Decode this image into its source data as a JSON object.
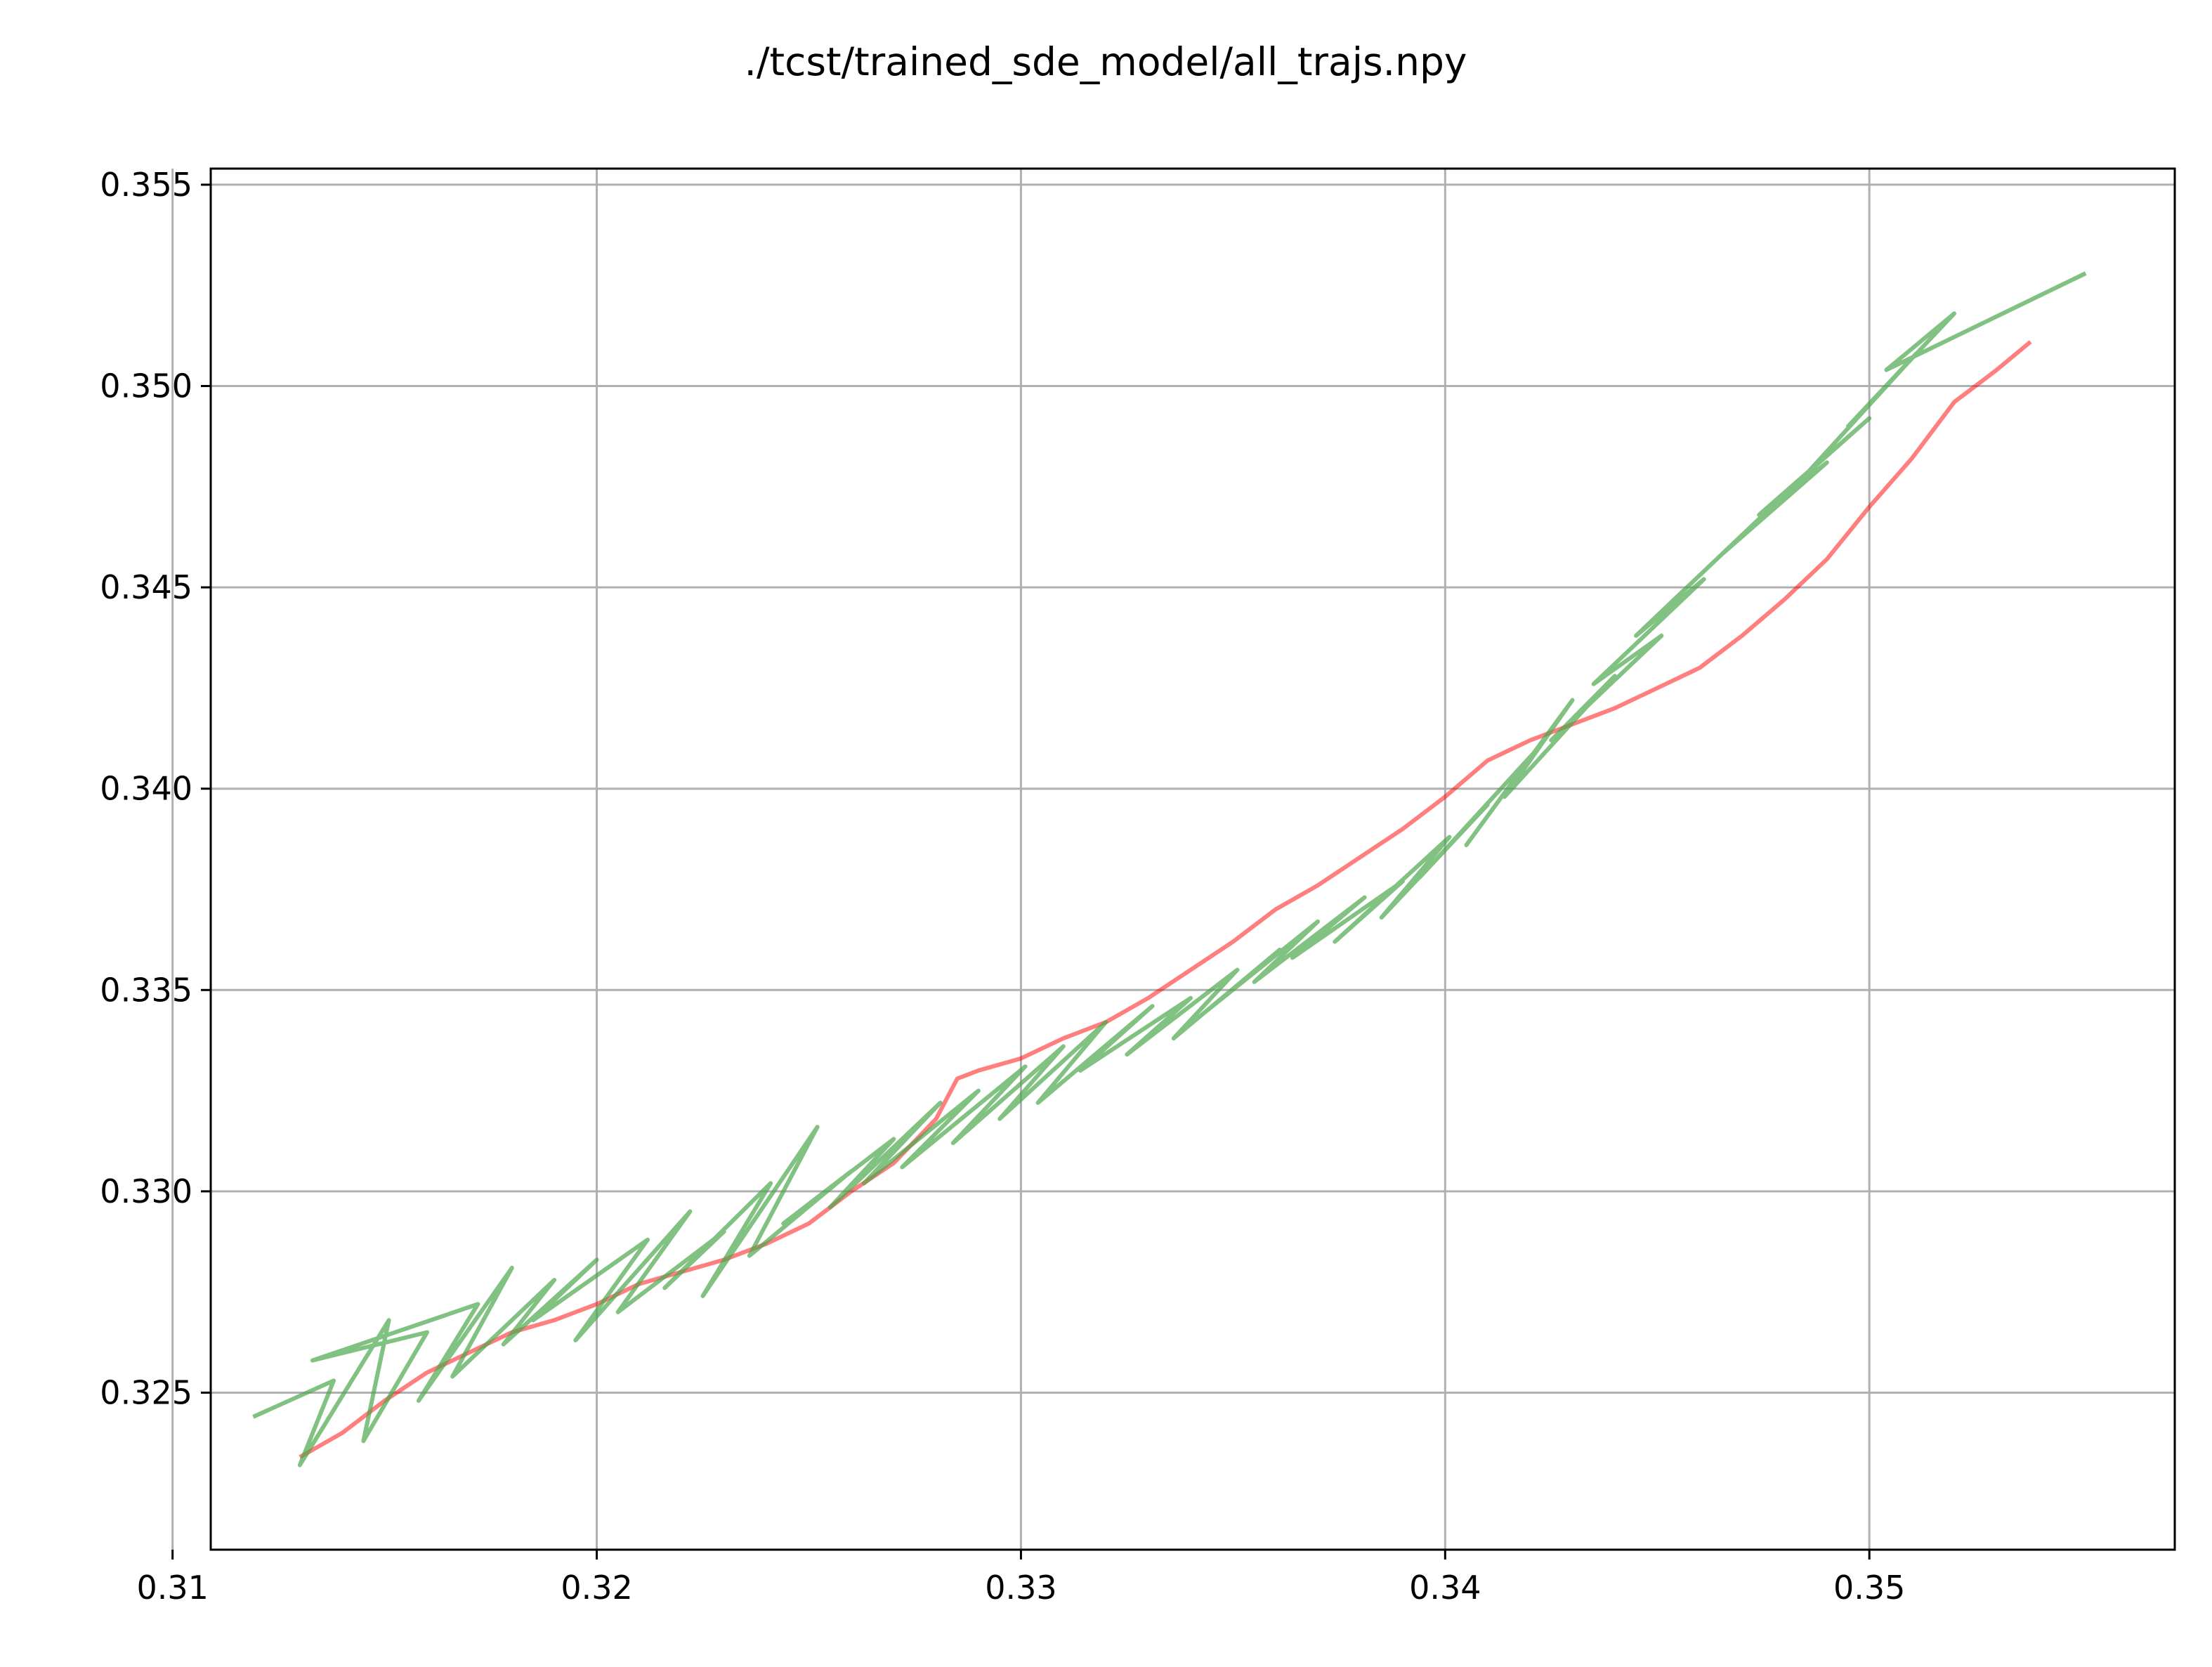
{
  "chart_data": {
    "type": "line",
    "title": "./tcst/trained_sde_model/all_trajs.npy",
    "xlim": [
      0.3109,
      0.3572
    ],
    "ylim": [
      0.3211,
      0.3554
    ],
    "xticks": [
      {
        "value": 0.31,
        "label": "0.31"
      },
      {
        "value": 0.32,
        "label": "0.32"
      },
      {
        "value": 0.33,
        "label": "0.33"
      },
      {
        "value": 0.34,
        "label": "0.34"
      },
      {
        "value": 0.35,
        "label": "0.35"
      }
    ],
    "yticks": [
      {
        "value": 0.325,
        "label": "0.325"
      },
      {
        "value": 0.33,
        "label": "0.330"
      },
      {
        "value": 0.335,
        "label": "0.335"
      },
      {
        "value": 0.34,
        "label": "0.340"
      },
      {
        "value": 0.345,
        "label": "0.345"
      },
      {
        "value": 0.35,
        "label": "0.350"
      },
      {
        "value": 0.355,
        "label": "0.355"
      }
    ],
    "grid": true,
    "series": [
      {
        "color": "#ff0000",
        "opacity": 0.5,
        "x": [
          0.313,
          0.314,
          0.315,
          0.316,
          0.317,
          0.318,
          0.319,
          0.32,
          0.321,
          0.322,
          0.323,
          0.324,
          0.325,
          0.326,
          0.327,
          0.328,
          0.3285,
          0.329,
          0.33,
          0.331,
          0.332,
          0.333,
          0.334,
          0.335,
          0.336,
          0.337,
          0.338,
          0.339,
          0.34,
          0.341,
          0.342,
          0.343,
          0.344,
          0.345,
          0.346,
          0.347,
          0.348,
          0.349,
          0.35,
          0.351,
          0.352,
          0.353,
          0.3538
        ],
        "y": [
          0.3234,
          0.324,
          0.3248,
          0.3255,
          0.326,
          0.3265,
          0.3268,
          0.3272,
          0.3277,
          0.328,
          0.3283,
          0.3287,
          0.3292,
          0.33,
          0.3307,
          0.3318,
          0.3328,
          0.333,
          0.3333,
          0.3338,
          0.3342,
          0.3348,
          0.3355,
          0.3362,
          0.337,
          0.3376,
          0.3383,
          0.339,
          0.3398,
          0.3407,
          0.3412,
          0.3416,
          0.342,
          0.3425,
          0.343,
          0.3438,
          0.3447,
          0.3457,
          0.347,
          0.3482,
          0.3496,
          0.3504,
          0.3511
        ]
      },
      {
        "color": "#4ca64c",
        "opacity": 0.7,
        "x": [
          0.3119,
          0.3138,
          0.313,
          0.3151,
          0.3145,
          0.316,
          0.3133,
          0.3172,
          0.3158,
          0.318,
          0.3166,
          0.319,
          0.3178,
          0.32,
          0.3185,
          0.3212,
          0.3195,
          0.3222,
          0.3205,
          0.323,
          0.3216,
          0.3241,
          0.3225,
          0.3252,
          0.3236,
          0.326,
          0.3244,
          0.327,
          0.3255,
          0.3281,
          0.3263,
          0.329,
          0.3272,
          0.3301,
          0.3284,
          0.331,
          0.3295,
          0.332,
          0.3304,
          0.3331,
          0.3314,
          0.334,
          0.3325,
          0.3351,
          0.3336,
          0.3361,
          0.3344,
          0.337,
          0.3355,
          0.3381,
          0.3364,
          0.339,
          0.3374,
          0.3401,
          0.3385,
          0.341,
          0.3394,
          0.3421,
          0.3405,
          0.343,
          0.3414,
          0.344,
          0.3425,
          0.3451,
          0.3435,
          0.3461,
          0.3445,
          0.347,
          0.3455,
          0.3481,
          0.3465,
          0.349,
          0.3474,
          0.35,
          0.3485,
          0.3511,
          0.3495,
          0.352,
          0.3504,
          0.3551
        ],
        "y": [
          0.3244,
          0.3253,
          0.3232,
          0.3268,
          0.3238,
          0.3265,
          0.3258,
          0.3272,
          0.3248,
          0.3281,
          0.3254,
          0.3278,
          0.3262,
          0.3283,
          0.3268,
          0.3288,
          0.3263,
          0.3295,
          0.327,
          0.329,
          0.3276,
          0.3302,
          0.3274,
          0.3316,
          0.3284,
          0.3305,
          0.3292,
          0.3313,
          0.3296,
          0.3322,
          0.3302,
          0.3325,
          0.3306,
          0.3331,
          0.3312,
          0.3336,
          0.3318,
          0.3342,
          0.3322,
          0.3346,
          0.333,
          0.3348,
          0.3334,
          0.3355,
          0.3338,
          0.336,
          0.3345,
          0.3367,
          0.3352,
          0.3373,
          0.3358,
          0.3377,
          0.3362,
          0.3388,
          0.3368,
          0.3396,
          0.3378,
          0.3409,
          0.3386,
          0.3422,
          0.3398,
          0.3428,
          0.3412,
          0.3438,
          0.3426,
          0.3452,
          0.3438,
          0.3463,
          0.3448,
          0.3474,
          0.3458,
          0.3481,
          0.3468,
          0.3492,
          0.3478,
          0.3508,
          0.349,
          0.3518,
          0.3504,
          0.3528
        ]
      }
    ]
  }
}
